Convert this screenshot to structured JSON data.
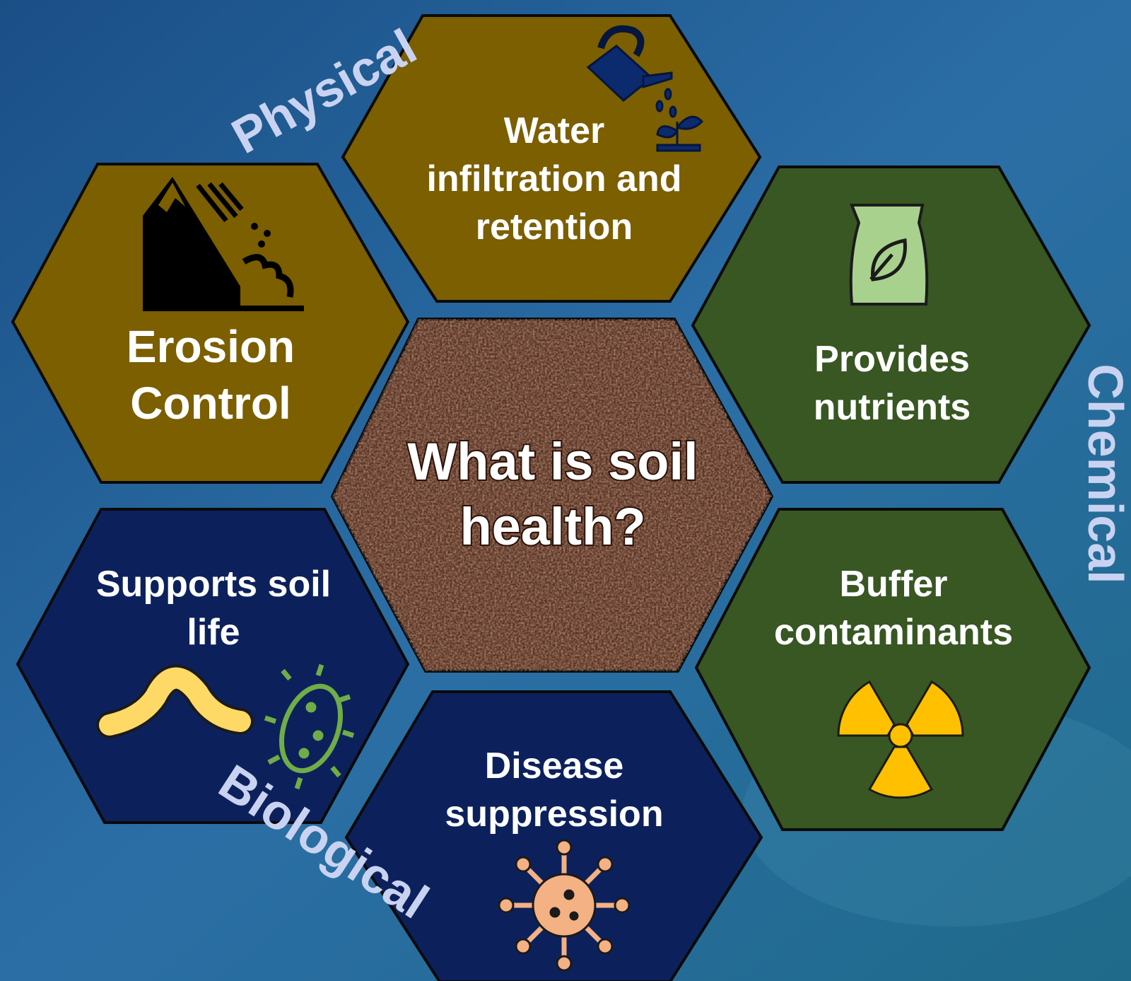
{
  "center": {
    "lines": [
      "What is soil",
      "health?"
    ]
  },
  "hexagons": [
    {
      "lines": [
        "Water",
        "infiltration and",
        "retention"
      ]
    },
    {
      "lines": [
        "Erosion",
        "Control"
      ]
    },
    {
      "lines": [
        "Provides",
        "nutrients"
      ]
    },
    {
      "lines": [
        "Supports soil",
        "life"
      ]
    },
    {
      "lines": [
        "Buffer",
        "contaminants"
      ]
    },
    {
      "lines": [
        "Disease",
        "suppression"
      ]
    }
  ],
  "dimensions": [
    "Physical",
    "Chemical",
    "Biological"
  ]
}
